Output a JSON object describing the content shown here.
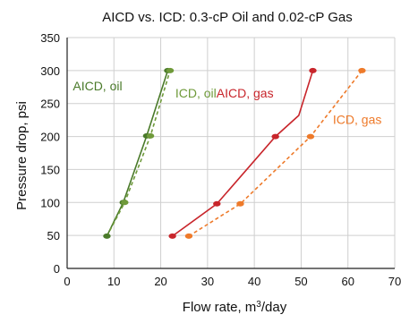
{
  "chart_data": {
    "type": "line",
    "title": "AICD vs. ICD: 0.3-cP Oil and 0.02-cP Gas",
    "xlabel": "Flow rate, m",
    "xlabel_sup": "3",
    "xlabel_suffix": "/day",
    "ylabel": "Pressure drop, psi",
    "xlim": [
      0,
      70
    ],
    "ylim": [
      0,
      350
    ],
    "xticks": [
      0,
      10,
      20,
      30,
      40,
      50,
      60,
      70
    ],
    "yticks": [
      0,
      50,
      100,
      150,
      200,
      250,
      300,
      350
    ],
    "grid": true,
    "legend": "inline labels",
    "series": [
      {
        "name": "AICD, oil",
        "color": "#4a7a2a",
        "dashed": false,
        "points": [
          [
            8.5,
            49
          ],
          [
            12,
            100
          ],
          [
            17,
            201
          ],
          [
            21.5,
            300
          ]
        ]
      },
      {
        "name": "ICD, oil",
        "color": "#6f9a3a",
        "dashed": true,
        "points": [
          [
            8.5,
            49
          ],
          [
            12.3,
            100
          ],
          [
            17.8,
            201
          ],
          [
            22,
            300
          ]
        ]
      },
      {
        "name": "AICD, gas",
        "color": "#c8252b",
        "dashed": false,
        "points": [
          [
            22.5,
            49
          ],
          [
            32,
            98
          ],
          [
            44.5,
            200
          ],
          [
            49.5,
            232
          ],
          [
            52.5,
            300
          ]
        ]
      },
      {
        "name": "ICD, gas",
        "color": "#ee7a2a",
        "dashed": true,
        "points": [
          [
            26,
            49
          ],
          [
            37,
            98
          ],
          [
            52,
            200
          ],
          [
            63,
            300
          ]
        ]
      }
    ],
    "markers": [
      {
        "series": "AICD, oil",
        "points": [
          [
            8.5,
            49
          ],
          [
            12,
            100
          ],
          [
            17,
            201
          ],
          [
            21.5,
            300
          ]
        ]
      },
      {
        "series": "ICD, oil",
        "points": [
          [
            12.3,
            100
          ],
          [
            17.8,
            201
          ],
          [
            22,
            300
          ]
        ]
      },
      {
        "series": "AICD, gas",
        "points": [
          [
            22.5,
            49
          ],
          [
            32,
            98
          ],
          [
            44.5,
            200
          ],
          [
            52.5,
            300
          ]
        ]
      },
      {
        "series": "ICD, gas",
        "points": [
          [
            26,
            49
          ],
          [
            37,
            98
          ],
          [
            52,
            200
          ],
          [
            63,
            300
          ]
        ]
      }
    ]
  }
}
